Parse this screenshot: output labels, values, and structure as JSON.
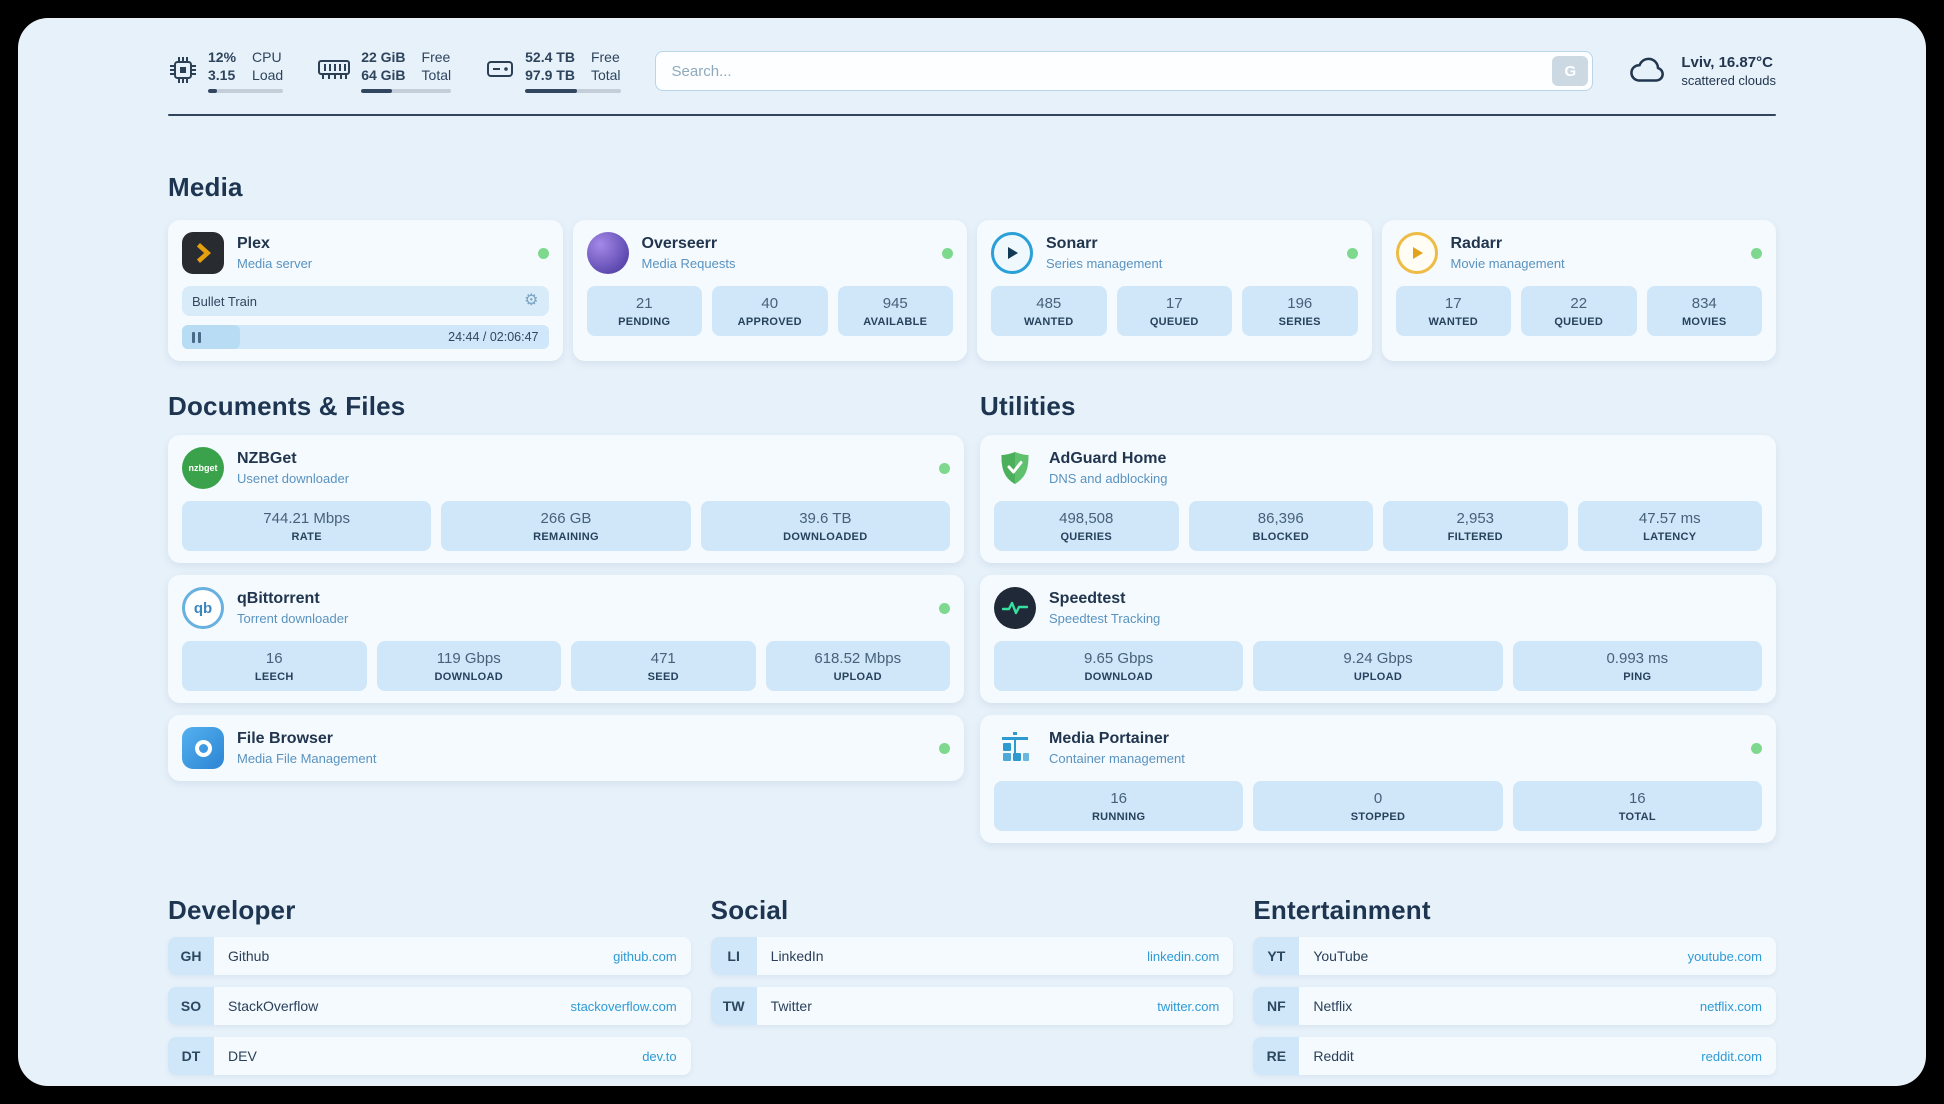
{
  "topbar": {
    "cpu": {
      "value1": "12%",
      "label1": "CPU",
      "value2": "3.15",
      "label2": "Load",
      "bar_pct": 12
    },
    "ram": {
      "value1": "22 GiB",
      "label1": "Free",
      "value2": "64 GiB",
      "label2": "Total",
      "bar_pct": 34
    },
    "disk": {
      "value1": "52.4 TB",
      "label1": "Free",
      "value2": "97.9 TB",
      "label2": "Total",
      "bar_pct": 54
    },
    "search": {
      "placeholder": "Search...",
      "button_label": "G"
    },
    "weather": {
      "location": "Lviv, 16.87°C",
      "condition": "scattered clouds"
    }
  },
  "sections": {
    "media": "Media",
    "documents": "Documents & Files",
    "utilities": "Utilities",
    "developer": "Developer",
    "social": "Social",
    "entertainment": "Entertainment"
  },
  "media": {
    "plex": {
      "title": "Plex",
      "subtitle": "Media server",
      "track": "Bullet Train",
      "time": "24:44 / 02:06:47",
      "gear": "⚙"
    },
    "overseerr": {
      "title": "Overseerr",
      "subtitle": "Media Requests",
      "stats": [
        {
          "value": "21",
          "label": "PENDING"
        },
        {
          "value": "40",
          "label": "APPROVED"
        },
        {
          "value": "945",
          "label": "AVAILABLE"
        }
      ]
    },
    "sonarr": {
      "title": "Sonarr",
      "subtitle": "Series management",
      "stats": [
        {
          "value": "485",
          "label": "WANTED"
        },
        {
          "value": "17",
          "label": "QUEUED"
        },
        {
          "value": "196",
          "label": "SERIES"
        }
      ]
    },
    "radarr": {
      "title": "Radarr",
      "subtitle": "Movie management",
      "stats": [
        {
          "value": "17",
          "label": "WANTED"
        },
        {
          "value": "22",
          "label": "QUEUED"
        },
        {
          "value": "834",
          "label": "MOVIES"
        }
      ]
    }
  },
  "documents": {
    "nzbget": {
      "title": "NZBGet",
      "subtitle": "Usenet downloader",
      "icon_text": "nzbget",
      "stats": [
        {
          "value": "744.21 Mbps",
          "label": "RATE"
        },
        {
          "value": "266 GB",
          "label": "REMAINING"
        },
        {
          "value": "39.6 TB",
          "label": "DOWNLOADED"
        }
      ]
    },
    "qbittorrent": {
      "title": "qBittorrent",
      "subtitle": "Torrent downloader",
      "icon_text": "qb",
      "stats": [
        {
          "value": "16",
          "label": "LEECH"
        },
        {
          "value": "119 Gbps",
          "label": "DOWNLOAD"
        },
        {
          "value": "471",
          "label": "SEED"
        },
        {
          "value": "618.52 Mbps",
          "label": "UPLOAD"
        }
      ]
    },
    "filebrowser": {
      "title": "File Browser",
      "subtitle": "Media File Management"
    }
  },
  "utilities": {
    "adguard": {
      "title": "AdGuard Home",
      "subtitle": "DNS and adblocking",
      "stats": [
        {
          "value": "498,508",
          "label": "QUERIES"
        },
        {
          "value": "86,396",
          "label": "BLOCKED"
        },
        {
          "value": "2,953",
          "label": "FILTERED"
        },
        {
          "value": "47.57 ms",
          "label": "LATENCY"
        }
      ]
    },
    "speedtest": {
      "title": "Speedtest",
      "subtitle": "Speedtest Tracking",
      "stats": [
        {
          "value": "9.65 Gbps",
          "label": "DOWNLOAD"
        },
        {
          "value": "9.24 Gbps",
          "label": "UPLOAD"
        },
        {
          "value": "0.993 ms",
          "label": "PING"
        }
      ]
    },
    "portainer": {
      "title": "Media Portainer",
      "subtitle": "Container management",
      "stats": [
        {
          "value": "16",
          "label": "RUNNING"
        },
        {
          "value": "0",
          "label": "STOPPED"
        },
        {
          "value": "16",
          "label": "TOTAL"
        }
      ]
    }
  },
  "bookmarks": {
    "developer": [
      {
        "abbr": "GH",
        "name": "Github",
        "url": "github.com"
      },
      {
        "abbr": "SO",
        "name": "StackOverflow",
        "url": "stackoverflow.com"
      },
      {
        "abbr": "DT",
        "name": "DEV",
        "url": "dev.to"
      }
    ],
    "social": [
      {
        "abbr": "LI",
        "name": "LinkedIn",
        "url": "linkedin.com"
      },
      {
        "abbr": "TW",
        "name": "Twitter",
        "url": "twitter.com"
      }
    ],
    "entertainment": [
      {
        "abbr": "YT",
        "name": "YouTube",
        "url": "youtube.com"
      },
      {
        "abbr": "NF",
        "name": "Netflix",
        "url": "netflix.com"
      },
      {
        "abbr": "RE",
        "name": "Reddit",
        "url": "reddit.com"
      }
    ]
  }
}
